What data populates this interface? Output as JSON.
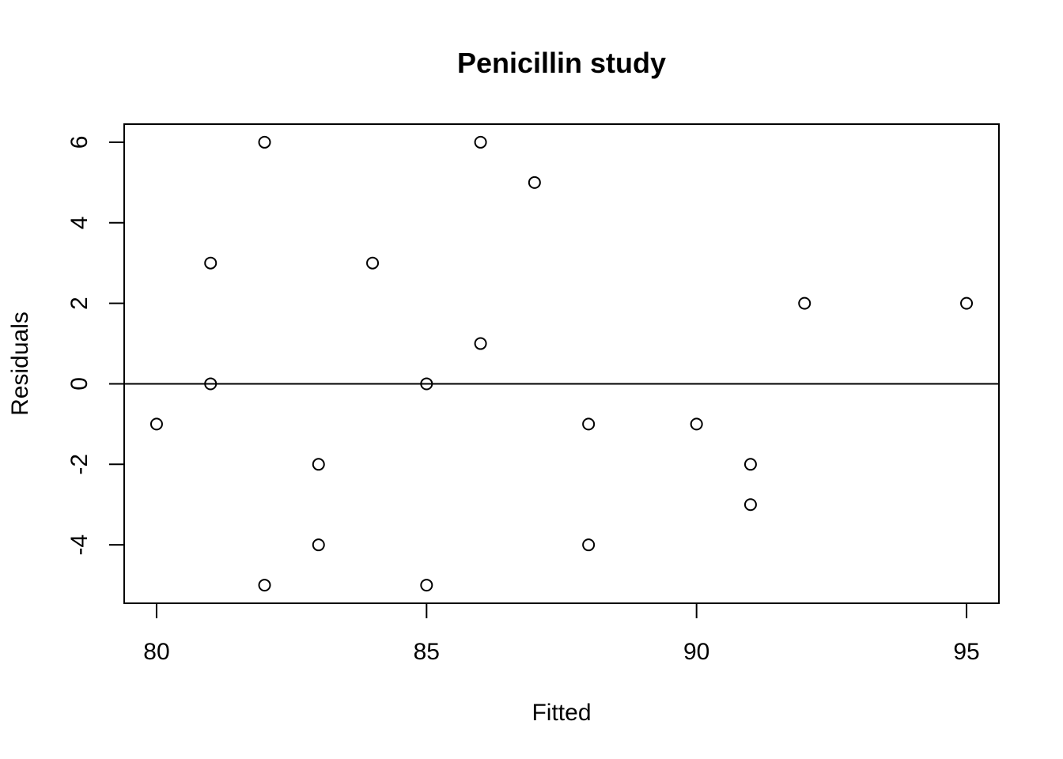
{
  "chart_data": {
    "type": "scatter",
    "title": "Penicillin study",
    "xlabel": "Fitted",
    "ylabel": "Residuals",
    "xlim": [
      79.4,
      95.6
    ],
    "ylim": [
      -5.45,
      6.45
    ],
    "x_ticks": [
      80,
      85,
      90,
      95
    ],
    "y_ticks": [
      -4,
      -2,
      0,
      2,
      4,
      6
    ],
    "reference_line_y": 0,
    "grid": false,
    "marker": "open-circle",
    "points": [
      {
        "x": 80,
        "y": -1
      },
      {
        "x": 81,
        "y": 3
      },
      {
        "x": 81,
        "y": 0
      },
      {
        "x": 82,
        "y": 6
      },
      {
        "x": 82,
        "y": -5
      },
      {
        "x": 83,
        "y": -2
      },
      {
        "x": 83,
        "y": -4
      },
      {
        "x": 84,
        "y": 3
      },
      {
        "x": 85,
        "y": 0
      },
      {
        "x": 85,
        "y": -5
      },
      {
        "x": 86,
        "y": 6
      },
      {
        "x": 86,
        "y": 1
      },
      {
        "x": 87,
        "y": 5
      },
      {
        "x": 88,
        "y": -1
      },
      {
        "x": 88,
        "y": -4
      },
      {
        "x": 90,
        "y": -1
      },
      {
        "x": 91,
        "y": -2
      },
      {
        "x": 91,
        "y": -3
      },
      {
        "x": 92,
        "y": 2
      },
      {
        "x": 95,
        "y": 2
      }
    ]
  }
}
